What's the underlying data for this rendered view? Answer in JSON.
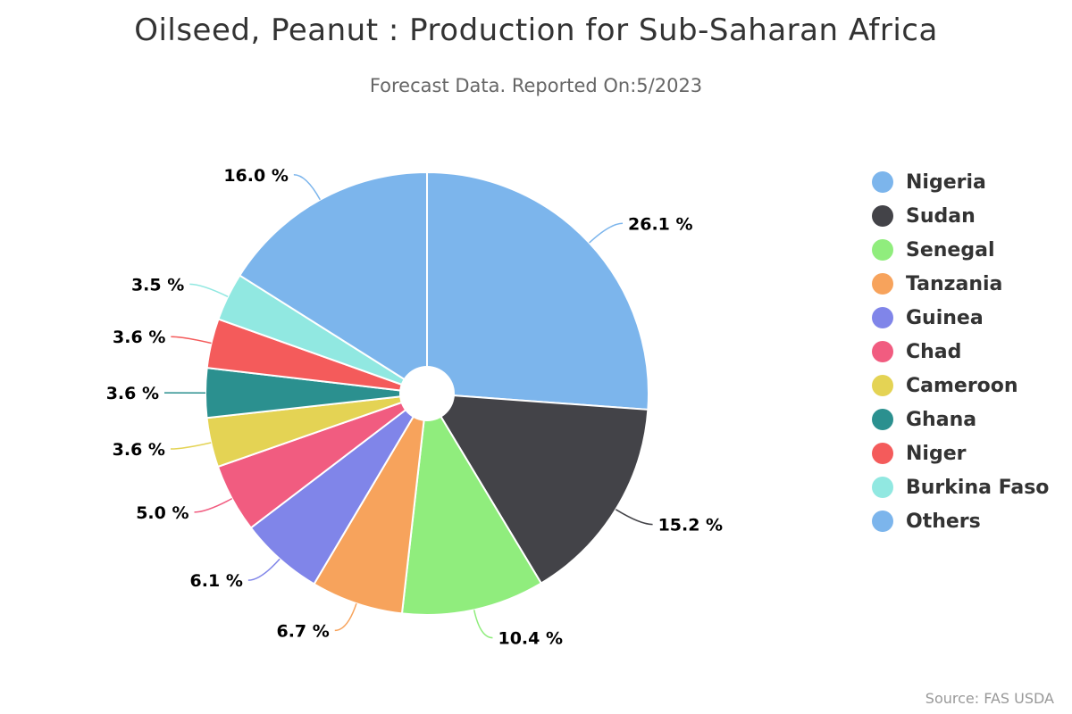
{
  "chart_data": {
    "type": "pie",
    "title": "Oilseed, Peanut : Production for Sub-Saharan Africa",
    "subtitle": "Forecast Data. Reported On:5/2023",
    "source": "Source: FAS USDA",
    "legend_position": "right",
    "slices": [
      {
        "name": "Nigeria",
        "value": 26.1,
        "label": "26.1 %",
        "color": "#7cb5ec"
      },
      {
        "name": "Sudan",
        "value": 15.2,
        "label": "15.2 %",
        "color": "#434348"
      },
      {
        "name": "Senegal",
        "value": 10.4,
        "label": "10.4 %",
        "color": "#90ed7d"
      },
      {
        "name": "Tanzania",
        "value": 6.7,
        "label": "6.7 %",
        "color": "#f7a35c"
      },
      {
        "name": "Guinea",
        "value": 6.1,
        "label": "6.1 %",
        "color": "#8085e9"
      },
      {
        "name": "Chad",
        "value": 5.0,
        "label": "5.0 %",
        "color": "#f15c80"
      },
      {
        "name": "Cameroon",
        "value": 3.6,
        "label": "3.6 %",
        "color": "#e4d354"
      },
      {
        "name": "Ghana",
        "value": 3.6,
        "label": "3.6 %",
        "color": "#2b908f"
      },
      {
        "name": "Niger",
        "value": 3.6,
        "label": "3.6 %",
        "color": "#f45b5b"
      },
      {
        "name": "Burkina Faso",
        "value": 3.5,
        "label": "3.5 %",
        "color": "#91e8e1"
      },
      {
        "name": "Others",
        "value": 16.0,
        "label": "16.0 %",
        "color": "#7cb5ec"
      }
    ]
  }
}
